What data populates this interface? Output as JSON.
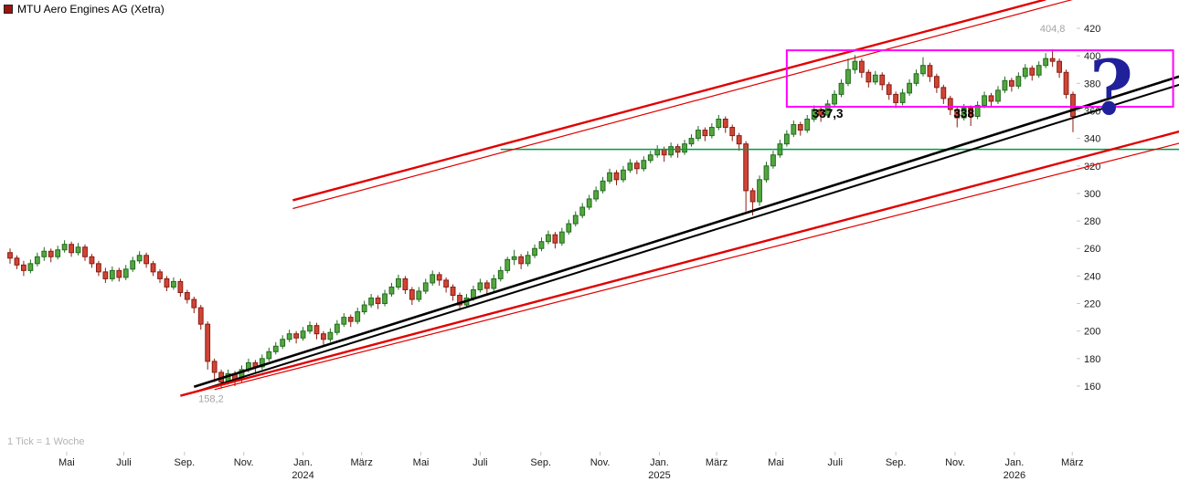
{
  "header": {
    "title": "MTU Aero Engines AG (Xetra)"
  },
  "footer": {
    "tick_note": "1 Tick = 1 Woche"
  },
  "question_mark": {
    "glyph": "?"
  },
  "colors": {
    "background": "#ffffff",
    "legend_icon": "#9b1410",
    "candle_up_fill": "#56a63f",
    "candle_up_border": "#1f6b1f",
    "candle_down_fill": "#cf4536",
    "candle_down_border": "#8a1c12",
    "support_green": "#009a44",
    "channel_red": "#e10000",
    "trend_black": "#000000",
    "highlight_magenta": "#ff00ff",
    "axis_text": "#1a1a1a",
    "muted_text": "#a3a3a3",
    "question_mark_blue": "#20209b"
  },
  "chart_data": {
    "type": "candlestick",
    "title": "MTU Aero Engines AG (Xetra)",
    "interval_note": "1 Tick = 1 Woche",
    "period_high": 404.8,
    "period_low": 158.2,
    "y_axis": {
      "side": "right",
      "min": 160,
      "max": 420,
      "ticks": [
        160,
        180,
        200,
        220,
        240,
        260,
        280,
        300,
        320,
        340,
        360,
        380,
        400,
        420
      ]
    },
    "x_axis": {
      "labels": [
        {
          "label": "Mai",
          "week": 8.3
        },
        {
          "label": "Juli",
          "week": 16.7
        },
        {
          "label": "Sep.",
          "week": 25.6
        },
        {
          "label": "Nov.",
          "week": 34.3
        },
        {
          "label": "Jan.",
          "year": "2024",
          "week": 43.0
        },
        {
          "label": "März",
          "week": 51.6
        },
        {
          "label": "Mai",
          "week": 60.3
        },
        {
          "label": "Juli",
          "week": 69.0
        },
        {
          "label": "Sep.",
          "week": 77.9
        },
        {
          "label": "Nov.",
          "week": 86.6
        },
        {
          "label": "Jan.",
          "year": "2025",
          "week": 95.3
        },
        {
          "label": "März",
          "week": 103.7
        },
        {
          "label": "Mai",
          "week": 112.4
        },
        {
          "label": "Juli",
          "week": 121.1
        },
        {
          "label": "Sep.",
          "week": 130.0
        },
        {
          "label": "Nov.",
          "week": 138.7
        },
        {
          "label": "Jan.",
          "year": "2026",
          "week": 147.4
        },
        {
          "label": "März",
          "week": 155.9
        }
      ]
    },
    "candles_ohlc": [
      [
        257,
        260,
        249,
        253
      ],
      [
        253,
        255,
        245,
        248
      ],
      [
        248,
        251,
        240,
        244
      ],
      [
        244,
        252,
        242,
        249
      ],
      [
        249,
        257,
        247,
        254
      ],
      [
        254,
        261,
        251,
        258
      ],
      [
        258,
        260,
        250,
        254
      ],
      [
        254,
        262,
        252,
        259
      ],
      [
        259,
        266,
        257,
        263
      ],
      [
        263,
        265,
        254,
        257
      ],
      [
        257,
        264,
        255,
        261
      ],
      [
        261,
        263,
        251,
        254
      ],
      [
        254,
        256,
        246,
        249
      ],
      [
        249,
        251,
        240,
        243
      ],
      [
        243,
        246,
        235,
        238
      ],
      [
        238,
        247,
        236,
        244
      ],
      [
        244,
        246,
        236,
        239
      ],
      [
        239,
        248,
        237,
        245
      ],
      [
        245,
        254,
        243,
        251
      ],
      [
        251,
        258,
        249,
        255
      ],
      [
        255,
        257,
        246,
        249
      ],
      [
        249,
        251,
        240,
        243
      ],
      [
        243,
        245,
        235,
        238
      ],
      [
        238,
        240,
        229,
        232
      ],
      [
        232,
        239,
        230,
        236
      ],
      [
        236,
        238,
        225,
        228
      ],
      [
        228,
        230,
        220,
        223
      ],
      [
        223,
        225,
        213,
        217
      ],
      [
        217,
        219,
        201,
        205
      ],
      [
        205,
        207,
        172,
        178
      ],
      [
        178,
        180,
        163,
        170
      ],
      [
        170,
        172,
        158.2,
        163
      ],
      [
        163,
        172,
        161,
        169
      ],
      [
        169,
        171,
        160,
        165
      ],
      [
        165,
        175,
        163,
        172
      ],
      [
        172,
        180,
        170,
        177
      ],
      [
        177,
        179,
        170,
        174
      ],
      [
        174,
        183,
        172,
        180
      ],
      [
        180,
        188,
        178,
        185
      ],
      [
        185,
        192,
        183,
        189
      ],
      [
        189,
        197,
        187,
        194
      ],
      [
        194,
        201,
        192,
        198
      ],
      [
        198,
        200,
        191,
        195
      ],
      [
        195,
        203,
        193,
        200
      ],
      [
        200,
        207,
        198,
        204
      ],
      [
        204,
        206,
        194,
        198
      ],
      [
        198,
        200,
        190,
        194
      ],
      [
        194,
        202,
        192,
        199
      ],
      [
        199,
        208,
        197,
        205
      ],
      [
        205,
        213,
        203,
        210
      ],
      [
        210,
        212,
        203,
        207
      ],
      [
        207,
        217,
        205,
        214
      ],
      [
        214,
        222,
        212,
        219
      ],
      [
        219,
        227,
        217,
        224
      ],
      [
        224,
        226,
        216,
        220
      ],
      [
        220,
        230,
        218,
        227
      ],
      [
        227,
        235,
        225,
        232
      ],
      [
        232,
        241,
        230,
        238
      ],
      [
        238,
        240,
        227,
        230
      ],
      [
        230,
        232,
        219,
        223
      ],
      [
        223,
        232,
        221,
        229
      ],
      [
        229,
        238,
        227,
        235
      ],
      [
        235,
        244,
        233,
        241
      ],
      [
        241,
        243,
        233,
        237
      ],
      [
        237,
        239,
        228,
        232
      ],
      [
        232,
        234,
        222,
        226
      ],
      [
        226,
        228,
        215,
        219
      ],
      [
        219,
        227,
        217,
        224
      ],
      [
        224,
        233,
        222,
        230
      ],
      [
        230,
        238,
        228,
        235
      ],
      [
        235,
        237,
        227,
        231
      ],
      [
        231,
        241,
        229,
        238
      ],
      [
        238,
        247,
        236,
        244
      ],
      [
        244,
        254,
        242,
        252
      ],
      [
        252,
        259,
        248,
        254
      ],
      [
        254,
        256,
        245,
        249
      ],
      [
        249,
        258,
        247,
        255
      ],
      [
        255,
        263,
        253,
        260
      ],
      [
        260,
        268,
        258,
        265
      ],
      [
        265,
        273,
        263,
        270
      ],
      [
        270,
        272,
        260,
        264
      ],
      [
        264,
        275,
        262,
        272
      ],
      [
        272,
        281,
        270,
        278
      ],
      [
        278,
        287,
        276,
        284
      ],
      [
        284,
        293,
        282,
        290
      ],
      [
        290,
        299,
        288,
        296
      ],
      [
        296,
        305,
        294,
        302
      ],
      [
        302,
        312,
        300,
        309
      ],
      [
        309,
        318,
        307,
        315
      ],
      [
        315,
        317,
        306,
        310
      ],
      [
        310,
        320,
        308,
        317
      ],
      [
        317,
        325,
        315,
        322
      ],
      [
        322,
        324,
        314,
        318
      ],
      [
        318,
        327,
        316,
        324
      ],
      [
        324,
        331,
        322,
        328
      ],
      [
        328,
        335,
        326,
        332
      ],
      [
        332,
        334,
        323,
        328
      ],
      [
        328,
        337,
        326,
        334
      ],
      [
        334,
        336,
        326,
        330
      ],
      [
        330,
        339,
        328,
        336
      ],
      [
        336,
        343,
        334,
        340
      ],
      [
        340,
        349,
        338,
        346
      ],
      [
        346,
        348,
        338,
        342
      ],
      [
        342,
        351,
        340,
        348
      ],
      [
        348,
        357,
        346,
        354
      ],
      [
        354,
        356,
        344,
        348
      ],
      [
        348,
        350,
        338,
        342
      ],
      [
        342,
        344,
        331,
        336
      ],
      [
        336,
        338,
        287,
        302
      ],
      [
        302,
        304,
        284,
        294
      ],
      [
        294,
        313,
        291,
        310
      ],
      [
        310,
        323,
        308,
        320
      ],
      [
        320,
        331,
        318,
        328
      ],
      [
        328,
        339,
        326,
        336
      ],
      [
        336,
        346,
        334,
        343
      ],
      [
        343,
        353,
        341,
        350
      ],
      [
        350,
        352,
        342,
        346
      ],
      [
        346,
        357,
        344,
        354
      ],
      [
        354,
        364,
        352,
        361
      ],
      [
        361,
        363,
        352,
        357
      ],
      [
        357,
        368,
        355,
        365
      ],
      [
        365,
        375,
        363,
        372
      ],
      [
        372,
        383,
        370,
        380
      ],
      [
        380,
        398,
        378,
        390
      ],
      [
        390,
        400.5,
        387,
        396
      ],
      [
        396,
        398,
        384,
        388
      ],
      [
        388,
        390,
        377,
        381
      ],
      [
        381,
        389,
        379,
        386
      ],
      [
        386,
        388,
        375,
        379
      ],
      [
        379,
        381,
        368,
        372
      ],
      [
        372,
        374,
        362,
        366
      ],
      [
        366,
        376,
        364,
        373
      ],
      [
        373,
        383,
        371,
        380
      ],
      [
        380,
        390,
        378,
        387
      ],
      [
        387,
        399,
        385,
        393
      ],
      [
        393,
        395,
        381,
        385
      ],
      [
        385,
        387,
        373,
        377
      ],
      [
        377,
        379,
        365,
        369
      ],
      [
        369,
        371,
        357,
        361
      ],
      [
        361,
        363,
        348,
        355
      ],
      [
        355,
        365,
        353,
        362
      ],
      [
        362,
        364,
        349,
        356
      ],
      [
        356,
        367,
        354,
        364
      ],
      [
        364,
        374,
        362,
        371
      ],
      [
        371,
        373,
        363,
        367
      ],
      [
        367,
        378,
        365,
        375
      ],
      [
        375,
        385,
        373,
        382
      ],
      [
        382,
        384,
        374,
        378
      ],
      [
        378,
        388,
        376,
        385
      ],
      [
        385,
        394,
        383,
        391
      ],
      [
        391,
        393,
        382,
        386
      ],
      [
        386,
        396,
        384,
        393
      ],
      [
        393,
        402,
        391,
        398
      ],
      [
        398,
        404.8,
        392,
        396
      ],
      [
        396,
        398,
        384,
        388
      ],
      [
        388,
        390,
        369,
        372
      ],
      [
        372,
        374,
        344.5,
        356
      ]
    ],
    "overlays": {
      "support_line_green": {
        "from": {
          "week": 72,
          "price": 332
        },
        "to": {
          "week": 171.6,
          "price": 332
        },
        "width": 1.5
      },
      "trend_lines_black": [
        {
          "from": {
            "week": 27.0,
            "price": 159.5
          },
          "to": {
            "week": 171.6,
            "price": 385.0
          },
          "width": 2.6
        },
        {
          "from": {
            "week": 27.6,
            "price": 156.5
          },
          "to": {
            "week": 171.6,
            "price": 379.0
          },
          "width": 2.0
        }
      ],
      "trend_channel_red": [
        {
          "name": "upper-main",
          "from": {
            "week": 41.5,
            "price": 295.0
          },
          "to": {
            "week": 152,
            "price": 441.0
          },
          "width": 2.4
        },
        {
          "name": "upper-inner",
          "from": {
            "week": 41.5,
            "price": 289.0
          },
          "to": {
            "week": 156,
            "price": 441.0
          },
          "width": 1.2
        },
        {
          "name": "lower-main",
          "from": {
            "week": 25.0,
            "price": 153.0
          },
          "to": {
            "week": 171.6,
            "price": 345.0
          },
          "width": 2.4
        },
        {
          "name": "lower-inner",
          "from": {
            "week": 30.0,
            "price": 157.5
          },
          "to": {
            "week": 171.6,
            "price": 336.5
          },
          "width": 1.2
        }
      ],
      "highlight_box_magenta": {
        "week_from": 114,
        "week_to": 170.7,
        "price_top": 404,
        "price_bottom": 363,
        "width": 2
      }
    },
    "annotations": [
      {
        "name": "period-high-label",
        "text": "404,8",
        "week": 153.0,
        "price": 417.5,
        "style": "muted"
      },
      {
        "name": "period-low-label",
        "text": "158,2",
        "week": 29.5,
        "price": 148.5,
        "style": "muted"
      },
      {
        "name": "support-level-1-label",
        "text": "337,3",
        "week": 120.0,
        "price": 355.0,
        "style": "bold"
      },
      {
        "name": "support-level-2-label",
        "text": "338",
        "week": 140.0,
        "price": 355.0,
        "style": "bold"
      }
    ]
  }
}
